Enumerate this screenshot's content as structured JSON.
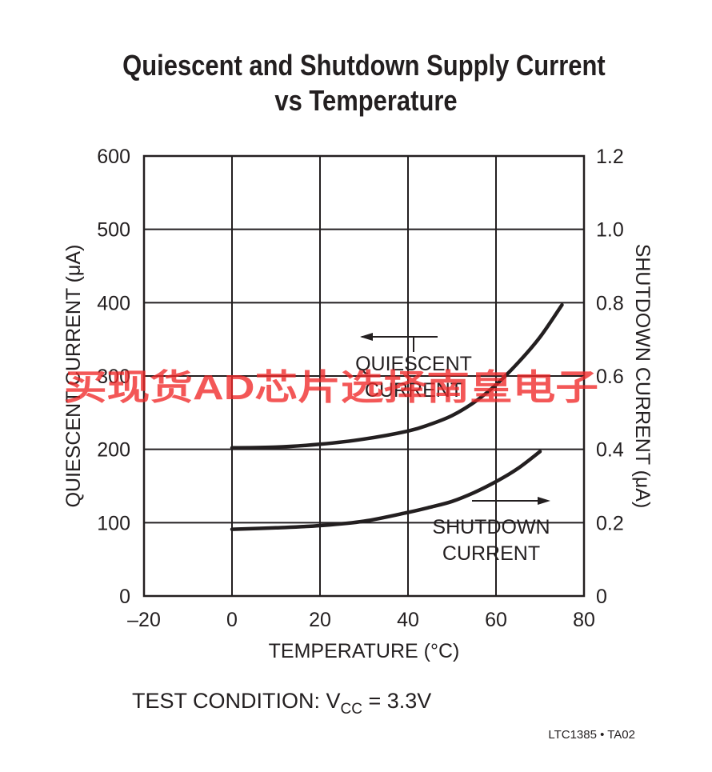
{
  "chart_data": {
    "type": "line",
    "title": [
      "Quiescent and Shutdown Supply Current",
      "vs Temperature"
    ],
    "xlabel": "TEMPERATURE (°C)",
    "ylabel_left": "QUIESCENT CURRENT (μA)",
    "ylabel_right": "SHUTDOWN CURRENT (μA)",
    "xlim": [
      -20,
      80
    ],
    "ylim_left": [
      0,
      600
    ],
    "ylim_right": [
      0,
      1.2
    ],
    "x_ticks": [
      "–20",
      "0",
      "20",
      "40",
      "60",
      "80"
    ],
    "y_ticks_left": [
      "0",
      "100",
      "200",
      "300",
      "400",
      "500",
      "600"
    ],
    "y_ticks_right": [
      "0",
      "0.2",
      "0.4",
      "0.6",
      "0.8",
      "1.0",
      "1.2"
    ],
    "grid": true,
    "series": [
      {
        "axis": "left",
        "x": [
          0,
          10,
          20,
          30,
          40,
          45,
          50,
          55,
          60,
          65,
          70,
          75
        ],
        "y": [
          202,
          203,
          207,
          214,
          225,
          234,
          246,
          264,
          288,
          318,
          353,
          397
        ]
      },
      {
        "axis": "right",
        "x": [
          0,
          10,
          20,
          30,
          40,
          45,
          50,
          55,
          60,
          65,
          70
        ],
        "y": [
          0.182,
          0.186,
          0.192,
          0.204,
          0.228,
          0.242,
          0.258,
          0.282,
          0.312,
          0.348,
          0.394
        ]
      }
    ],
    "annotations": [
      {
        "lines": [
          "QUIESCENT",
          "CURRENT"
        ],
        "arrow": "left"
      },
      {
        "lines": [
          "SHUTDOWN",
          "CURRENT"
        ],
        "arrow": "right"
      }
    ]
  },
  "note": {
    "prefix": "TEST CONDITION: V",
    "subscript": "CC",
    "suffix": " = 3.3V"
  },
  "figure_id": "LTC1385 • TA02",
  "watermark": "买现货AD芯片选择南皇电子"
}
